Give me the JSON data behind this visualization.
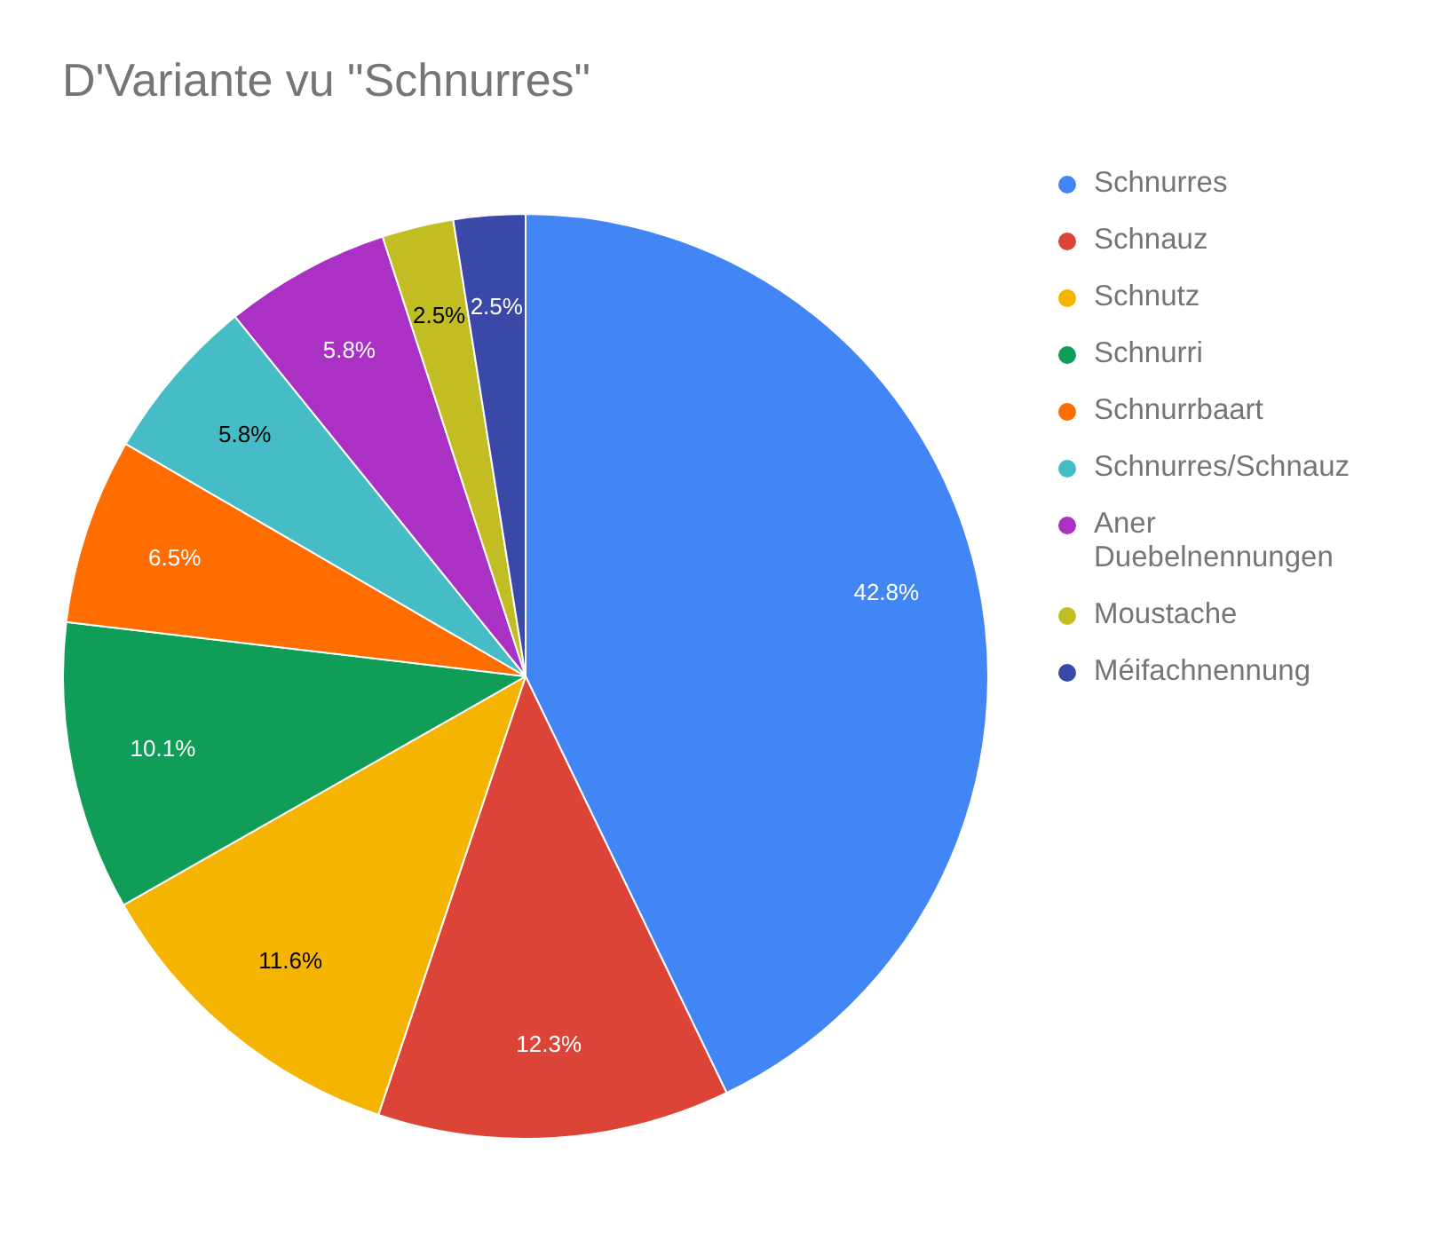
{
  "chart_data": {
    "type": "pie",
    "title": "D'Variante vu \"Schnurres\"",
    "categories": [
      "Schnurres",
      "Schnauz",
      "Schnutz",
      "Schnurri",
      "Schnurrbaart",
      "Schnurres/Schnauz",
      "Aner Duebelnennungen",
      "Moustache",
      "Méifachnennung"
    ],
    "values": [
      42.8,
      12.3,
      11.6,
      10.1,
      6.5,
      5.8,
      5.8,
      2.5,
      2.5
    ],
    "colors": [
      "#4285f4",
      "#db4437",
      "#f4b400",
      "#0f9d58",
      "#ff6d01",
      "#46bdc6",
      "#ab30c4",
      "#c1bd23",
      "#3a48a8"
    ],
    "value_labels": [
      "42.8%",
      "12.3%",
      "11.6%",
      "10.1%",
      "6.5%",
      "5.8%",
      "5.8%",
      "2.5%",
      "2.5%"
    ],
    "legend": "right"
  }
}
